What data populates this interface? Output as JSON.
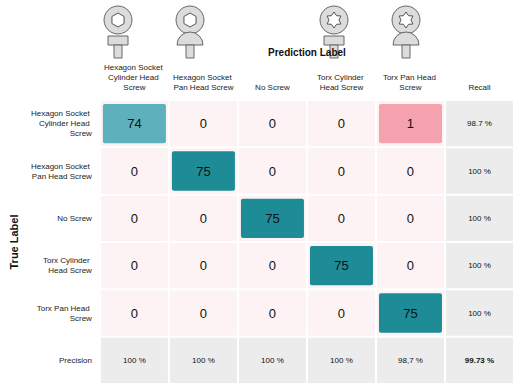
{
  "chart_data": {
    "type": "heatmap",
    "x_label": "Prediction Label",
    "y_label": "True Label",
    "x_categories": [
      "Hexagon Socket Cylinder Head Screw",
      "Hexagon Socket Pan Head Screw",
      "No Screw",
      "Torx Cylinder Head Screw",
      "Torx Pan Head Screw"
    ],
    "y_categories": [
      "Hexagon Socket Cylinder Head Screw",
      "Hexagon Socket Pan Head Screw",
      "No Screw",
      "Torx Cylinder Head Screw",
      "Torx Pan Head Screw"
    ],
    "cells": [
      [
        74,
        0,
        0,
        0,
        1
      ],
      [
        0,
        75,
        0,
        0,
        0
      ],
      [
        0,
        0,
        75,
        0,
        0
      ],
      [
        0,
        0,
        0,
        75,
        0
      ],
      [
        0,
        0,
        0,
        0,
        75
      ]
    ],
    "recall_label": "Recall",
    "recall": [
      {
        "value": 98.7,
        "label": "98.7 %"
      },
      {
        "value": 100,
        "label": "100 %"
      },
      {
        "value": 100,
        "label": "100 %"
      },
      {
        "value": 100,
        "label": "100 %"
      },
      {
        "value": 100,
        "label": "100 %"
      }
    ],
    "precision_label": "Precision",
    "precision": [
      {
        "value": 100,
        "label": "100 %"
      },
      {
        "value": 100,
        "label": "100 %"
      },
      {
        "value": 100,
        "label": "100 %"
      },
      {
        "value": 100,
        "label": "100 %"
      },
      {
        "value": 98.7,
        "label": "98,7 %"
      }
    ],
    "accuracy": {
      "value": 99.73,
      "label": "99.73 %"
    }
  }
}
